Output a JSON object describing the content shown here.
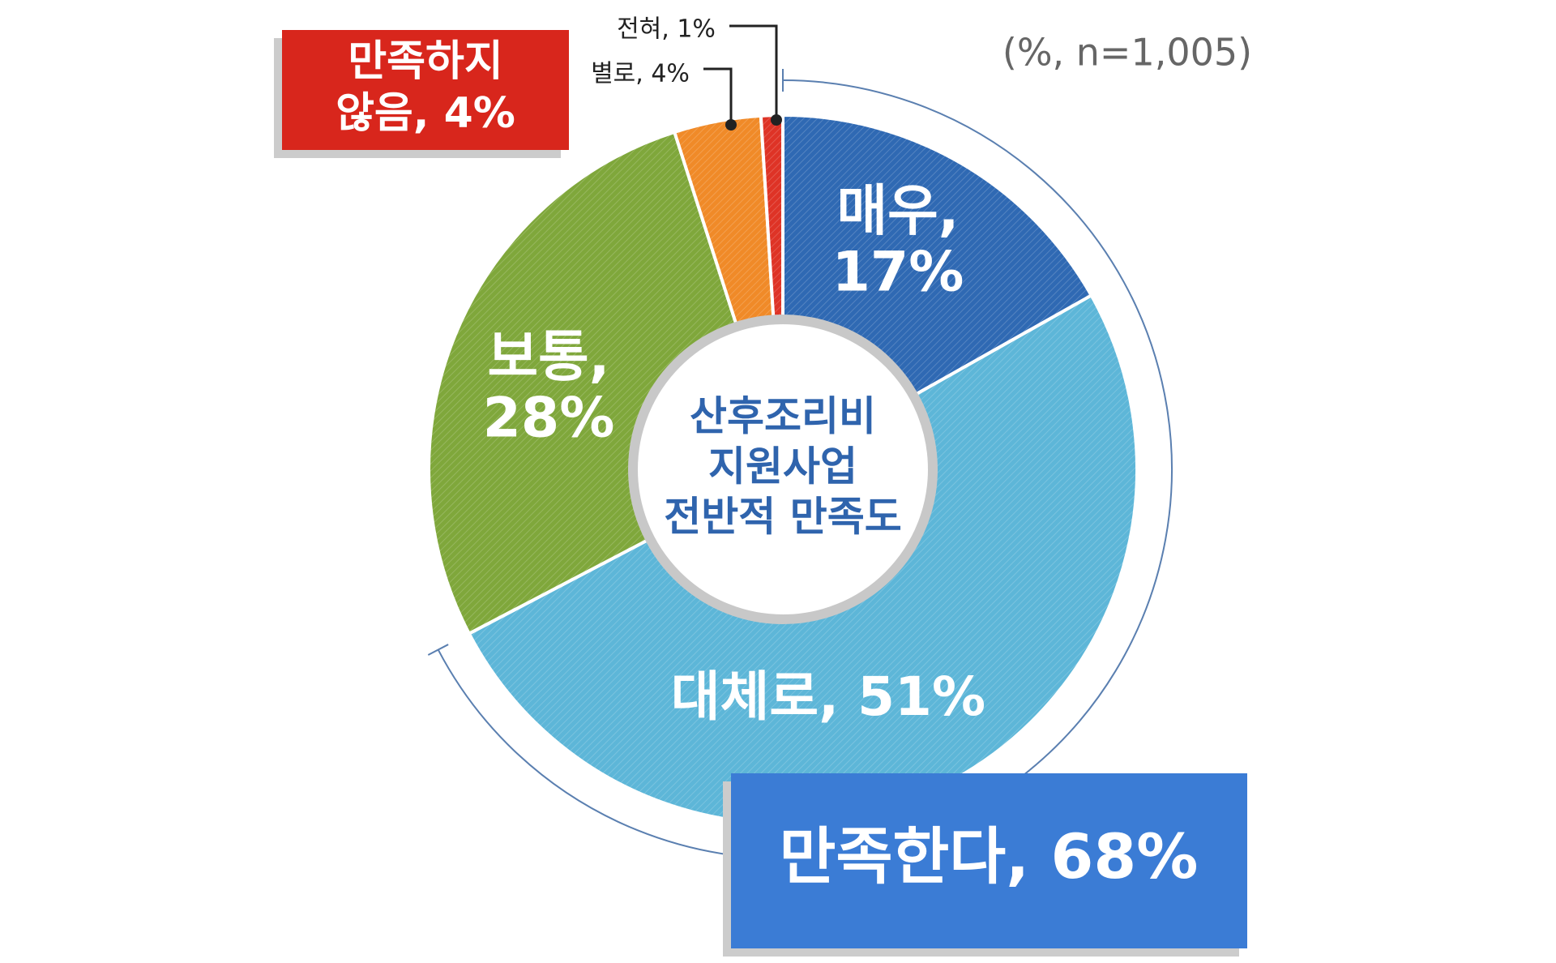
{
  "chart_data": {
    "type": "donut",
    "center_label": [
      "산후조리비",
      "지원사업",
      "전반적 만족도"
    ],
    "note": "(%, n=1,005)",
    "categories": [
      "매우",
      "대체로",
      "보통",
      "별로",
      "전혀"
    ],
    "values": [
      17,
      51,
      28,
      4,
      1
    ],
    "value_labels": [
      "매우, 17%",
      "대체로, 51%",
      "보통, 28%",
      "별로, 4%",
      "전혀, 1%"
    ],
    "colors": [
      "#2f69b3",
      "#5db6d8",
      "#7fa73b",
      "#f08a28",
      "#de3326"
    ],
    "annotations": [
      "만족하지 않음, 4%",
      "만족한다, 68%"
    ]
  }
}
